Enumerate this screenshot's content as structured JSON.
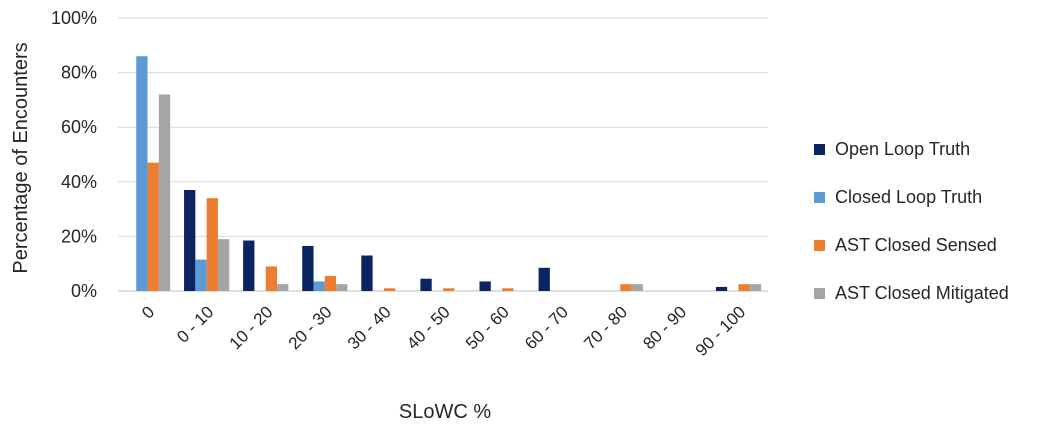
{
  "chart_data": {
    "type": "bar",
    "xlabel": "SLoWC %",
    "ylabel": "Percentage of Encounters",
    "ylim": [
      0,
      100
    ],
    "y_ticks": [
      "0%",
      "20%",
      "40%",
      "60%",
      "80%",
      "100%"
    ],
    "y_tick_values": [
      0,
      20,
      40,
      60,
      80,
      100
    ],
    "grid": "horizontal",
    "legend_position": "right",
    "categories": [
      "0",
      "0 - 10",
      "10 - 20",
      "20 - 30",
      "30 - 40",
      "40 - 50",
      "50 - 60",
      "60 - 70",
      "70 - 80",
      "80 - 90",
      "90 - 100"
    ],
    "series": [
      {
        "name": "Open Loop Truth",
        "color": "#0d2463",
        "values": [
          0,
          37,
          18.5,
          16.5,
          13,
          4.5,
          3.5,
          8.5,
          0,
          0,
          1.5
        ]
      },
      {
        "name": "Closed Loop Truth",
        "color": "#5b9bd5",
        "values": [
          86,
          11.5,
          0,
          3.5,
          0,
          0,
          0,
          0,
          0,
          0,
          0
        ]
      },
      {
        "name": "AST Closed Sensed",
        "color": "#ed7d31",
        "values": [
          47,
          34,
          9,
          5.5,
          1,
          1,
          1,
          0,
          2.5,
          0,
          2.5
        ]
      },
      {
        "name": "AST Closed Mitigated",
        "color": "#a5a5a5",
        "values": [
          72,
          19,
          2.5,
          2.5,
          0,
          0,
          0,
          0,
          2.5,
          0,
          2.5
        ]
      }
    ]
  }
}
